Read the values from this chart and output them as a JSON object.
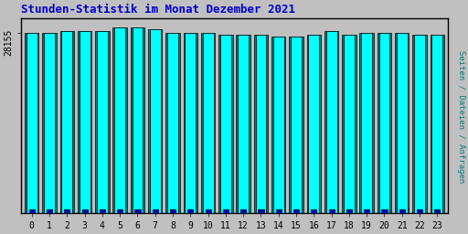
{
  "title": "Stunden-Statistik im Monat Dezember 2021",
  "ylabel": "Seiten / Dateien / Anfragen",
  "ytick_label": "28155",
  "xlabel_ticks": [
    "0",
    "1",
    "2",
    "3",
    "4",
    "5",
    "6",
    "7",
    "8",
    "9",
    "10",
    "11",
    "12",
    "13",
    "14",
    "15",
    "16",
    "17",
    "18",
    "19",
    "20",
    "21",
    "22",
    "23"
  ],
  "background_color": "#c0c0c0",
  "title_color": "#0000cc",
  "title_fontsize": 9,
  "bar_color_cyan": "#00ffff",
  "bar_color_teal": "#008080",
  "bar_color_blue": "#0000cd",
  "bar_heights": [
    97,
    97,
    98,
    98,
    98,
    100,
    100,
    99,
    97,
    97,
    97,
    96,
    96,
    96,
    95,
    95,
    96,
    98,
    96,
    97,
    97,
    97,
    96,
    96
  ],
  "small_bar_heights": [
    2,
    2,
    2,
    2,
    2,
    2,
    2,
    2,
    2,
    2,
    2,
    2,
    2,
    2,
    2,
    2,
    2,
    2,
    2,
    2,
    2,
    2,
    2,
    2
  ],
  "ylim": [
    0,
    105
  ],
  "figsize": [
    5.12,
    2.56
  ],
  "dpi": 100,
  "ylabel_color": "#008080",
  "ylabel_fontsize": 6.5,
  "xtick_fontsize": 7,
  "ytick_fontsize": 7
}
